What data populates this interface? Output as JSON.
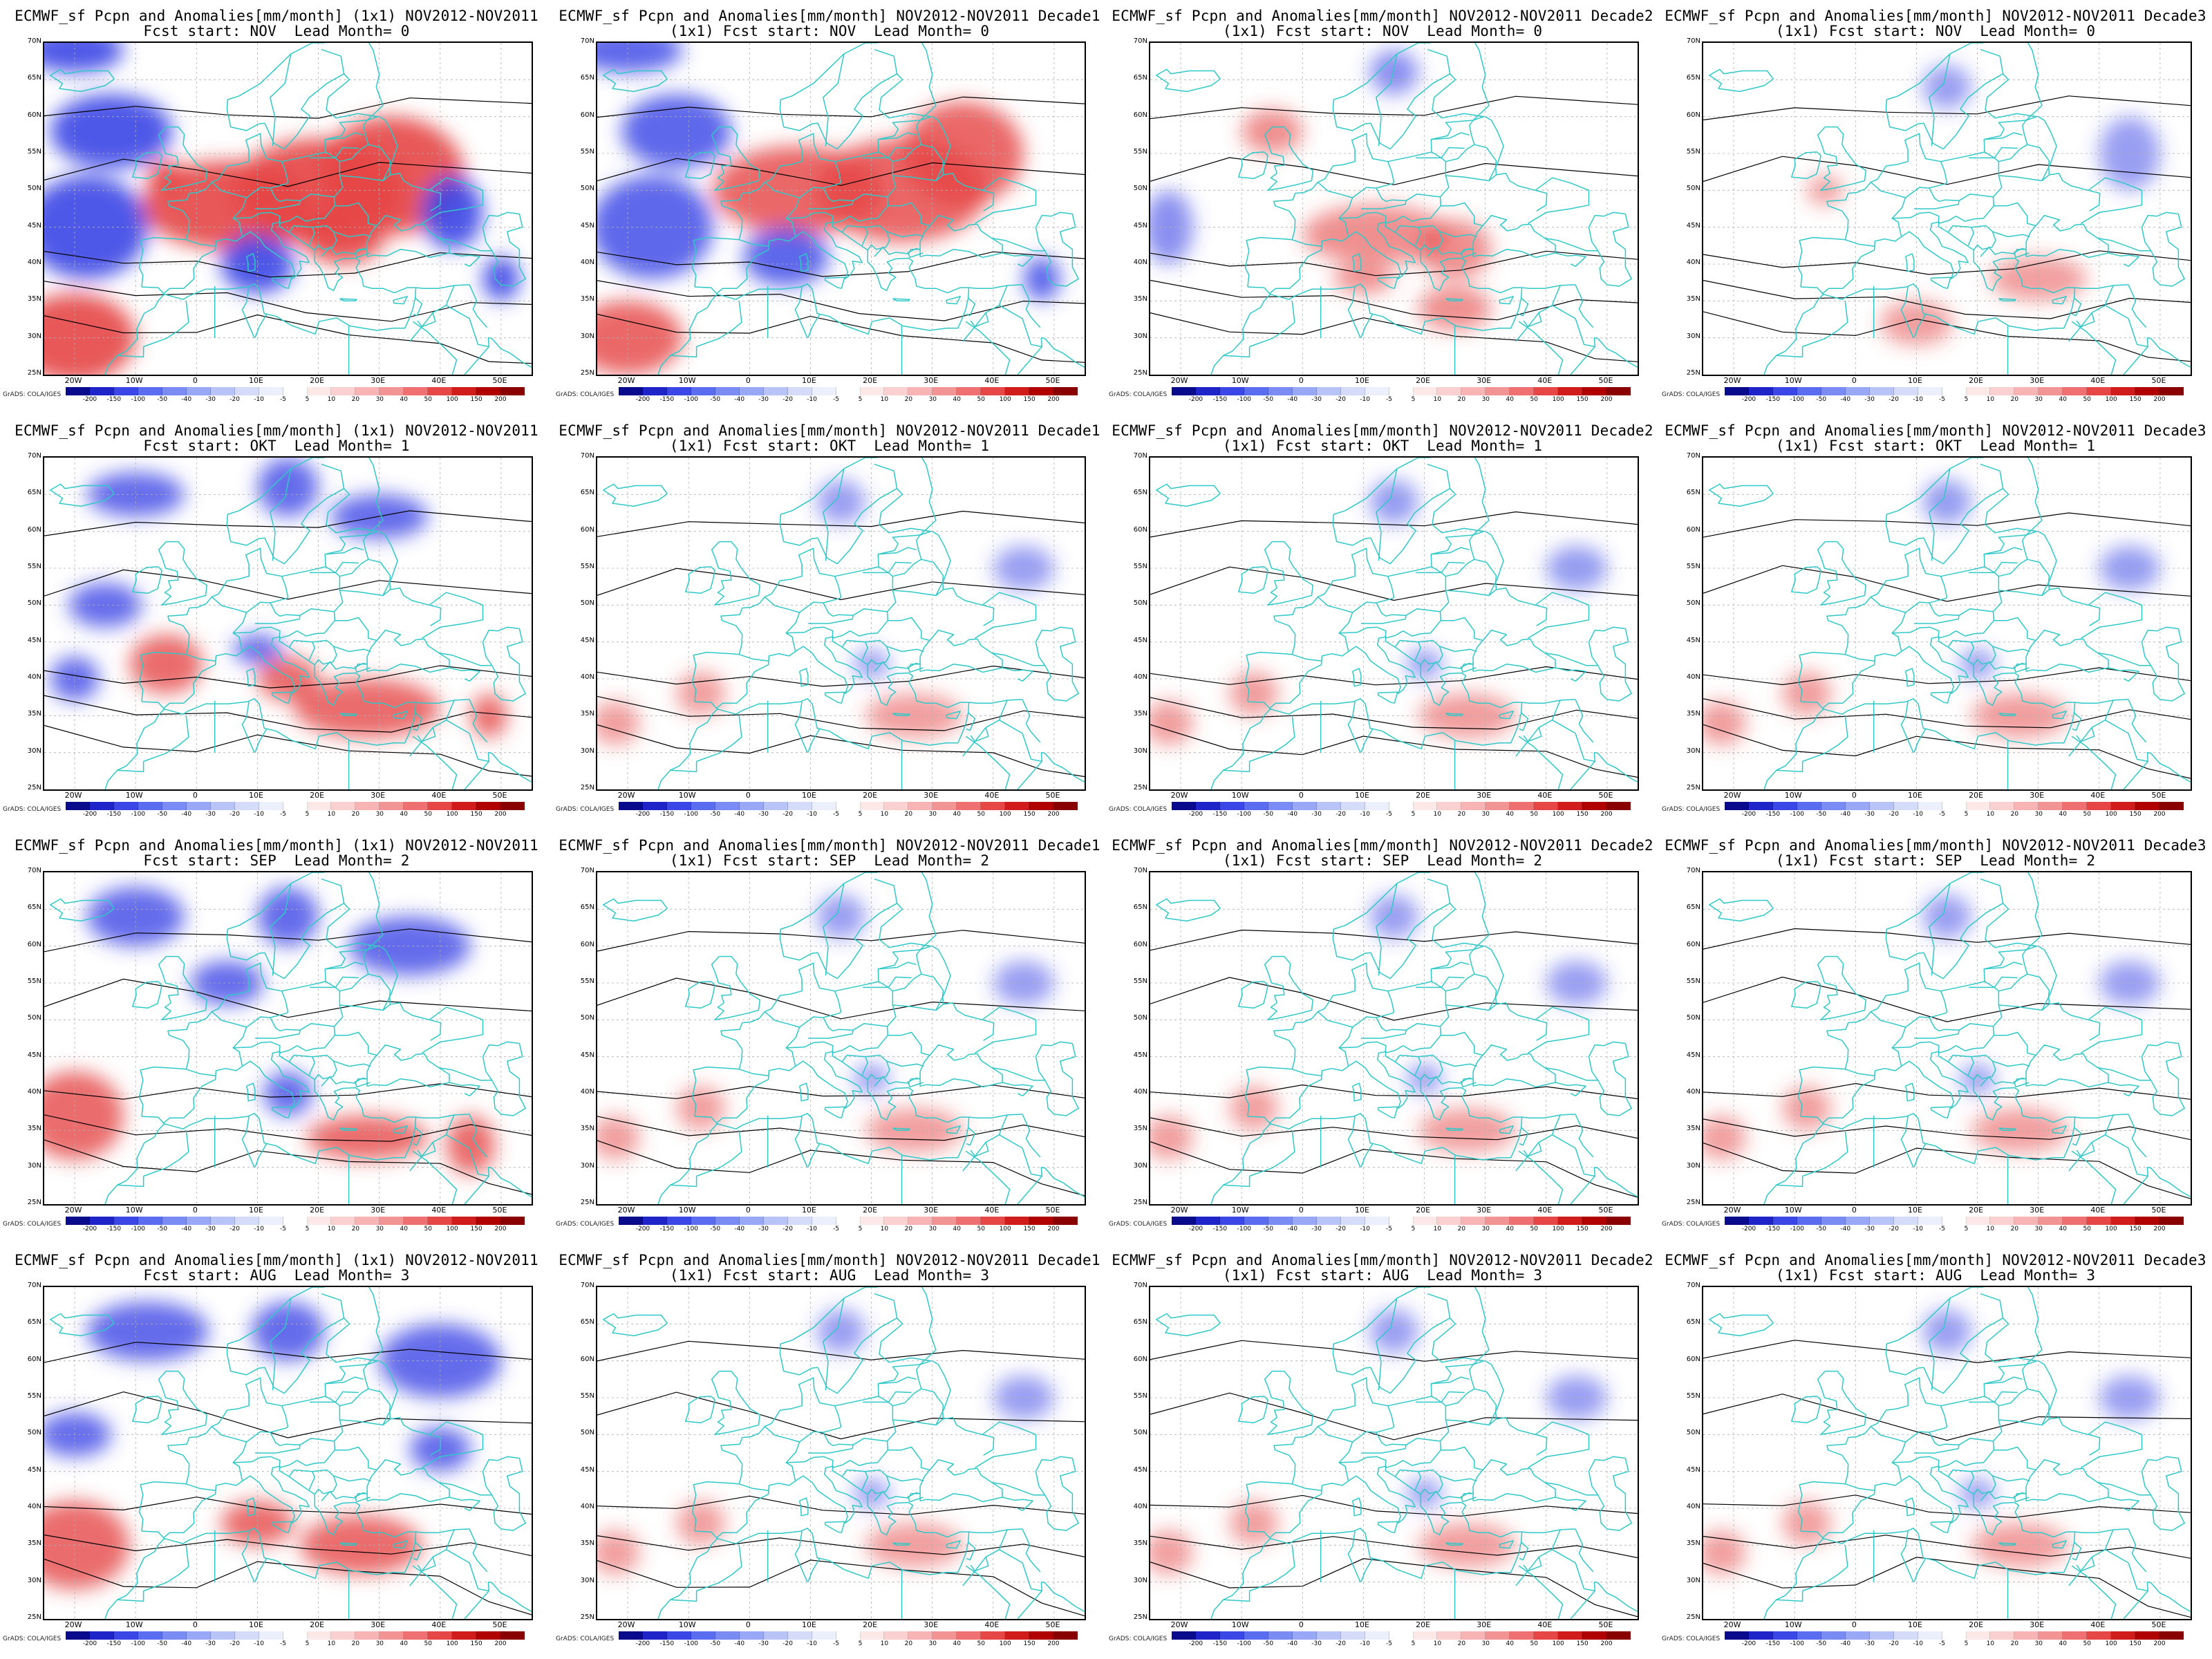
{
  "panels": [
    {
      "row": 0,
      "col": 0,
      "title1": "ECMWF_sf Pcpn and Anomalies[mm/month] (1x1) NOV2012-NOV2011",
      "title2": "Fcst start: NOV  Lead Month= 0",
      "intensity": 1.0
    },
    {
      "row": 0,
      "col": 1,
      "title1": "ECMWF_sf Pcpn and Anomalies[mm/month] NOV2012-NOV2011 Decade1",
      "title2": "(1x1) Fcst start: NOV  Lead Month= 0",
      "intensity": 0.85
    },
    {
      "row": 0,
      "col": 2,
      "title1": "ECMWF_sf Pcpn and Anomalies[mm/month] NOV2012-NOV2011 Decade2",
      "title2": "(1x1) Fcst start: NOV  Lead Month= 0",
      "intensity": 0.45
    },
    {
      "row": 0,
      "col": 3,
      "title1": "ECMWF_sf Pcpn and Anomalies[mm/month] NOV2012-NOV2011 Decade3",
      "title2": "(1x1) Fcst start: NOV  Lead Month= 0",
      "intensity": 0.3
    },
    {
      "row": 1,
      "col": 0,
      "title1": "ECMWF_sf Pcpn and Anomalies[mm/month] (1x1) NOV2012-NOV2011",
      "title2": "Fcst start: OKT  Lead Month= 1",
      "intensity": 0.8
    },
    {
      "row": 1,
      "col": 1,
      "title1": "ECMWF_sf Pcpn and Anomalies[mm/month] NOV2012-NOV2011 Decade1",
      "title2": "(1x1) Fcst start: OKT  Lead Month= 1",
      "intensity": 0.3
    },
    {
      "row": 1,
      "col": 2,
      "title1": "ECMWF_sf Pcpn and Anomalies[mm/month] NOV2012-NOV2011 Decade2",
      "title2": "(1x1) Fcst start: OKT  Lead Month= 1",
      "intensity": 0.35
    },
    {
      "row": 1,
      "col": 3,
      "title1": "ECMWF_sf Pcpn and Anomalies[mm/month] NOV2012-NOV2011 Decade3",
      "title2": "(1x1) Fcst start: OKT  Lead Month= 1",
      "intensity": 0.35
    },
    {
      "row": 2,
      "col": 0,
      "title1": "ECMWF_sf Pcpn and Anomalies[mm/month] (1x1) NOV2012-NOV2011",
      "title2": "Fcst start: SEP  Lead Month= 2",
      "intensity": 0.8
    },
    {
      "row": 2,
      "col": 1,
      "title1": "ECMWF_sf Pcpn and Anomalies[mm/month] NOV2012-NOV2011 Decade1",
      "title2": "(1x1) Fcst start: SEP  Lead Month= 2",
      "intensity": 0.3
    },
    {
      "row": 2,
      "col": 2,
      "title1": "ECMWF_sf Pcpn and Anomalies[mm/month] NOV2012-NOV2011 Decade2",
      "title2": "(1x1) Fcst start: SEP  Lead Month= 2",
      "intensity": 0.3
    },
    {
      "row": 2,
      "col": 3,
      "title1": "ECMWF_sf Pcpn and Anomalies[mm/month] NOV2012-NOV2011 Decade3",
      "title2": "(1x1) Fcst start: SEP  Lead Month= 2",
      "intensity": 0.3
    },
    {
      "row": 3,
      "col": 0,
      "title1": "ECMWF_sf Pcpn and Anomalies[mm/month] (1x1) NOV2012-NOV2011",
      "title2": "Fcst start: AUG  Lead Month= 3",
      "intensity": 0.8
    },
    {
      "row": 3,
      "col": 1,
      "title1": "ECMWF_sf Pcpn and Anomalies[mm/month] NOV2012-NOV2011 Decade1",
      "title2": "(1x1) Fcst start: AUG  Lead Month= 3",
      "intensity": 0.3
    },
    {
      "row": 3,
      "col": 2,
      "title1": "ECMWF_sf Pcpn and Anomalies[mm/month] NOV2012-NOV2011 Decade2",
      "title2": "(1x1) Fcst start: AUG  Lead Month= 3",
      "intensity": 0.3
    },
    {
      "row": 3,
      "col": 3,
      "title1": "ECMWF_sf Pcpn and Anomalies[mm/month] NOV2012-NOV2011 Decade3",
      "title2": "(1x1) Fcst start: AUG  Lead Month= 3",
      "intensity": 0.3
    }
  ],
  "lat_labels": [
    "70N",
    "65N",
    "60N",
    "55N",
    "50N",
    "45N",
    "40N",
    "35N",
    "30N",
    "25N"
  ],
  "lon_labels": [
    "20W",
    "10W",
    "0",
    "10E",
    "20E",
    "30E",
    "40E",
    "50E"
  ],
  "colorbar": {
    "labels": [
      "-200",
      "-150",
      "-100",
      "-50",
      "-40",
      "-30",
      "-20",
      "-10",
      "-5",
      "5",
      "10",
      "20",
      "30",
      "40",
      "50",
      "100",
      "150",
      "200"
    ],
    "colors": [
      "#0a0a8c",
      "#1e24c8",
      "#3a46e6",
      "#5a6cf0",
      "#7a8cf4",
      "#98a8f6",
      "#b8c4f8",
      "#d4dcfa",
      "#eceffc",
      "#ffffff",
      "#fde8e8",
      "#fbd0d0",
      "#f8b4b4",
      "#f39494",
      "#ee7070",
      "#e64646",
      "#d11c1c",
      "#b00000",
      "#8a0000"
    ]
  },
  "credit": "GrADS: COLA/IGES",
  "colors": {
    "border": "#30c8c8",
    "contour": "#000000",
    "positive": "#e64646",
    "negative": "#3a46e6"
  }
}
